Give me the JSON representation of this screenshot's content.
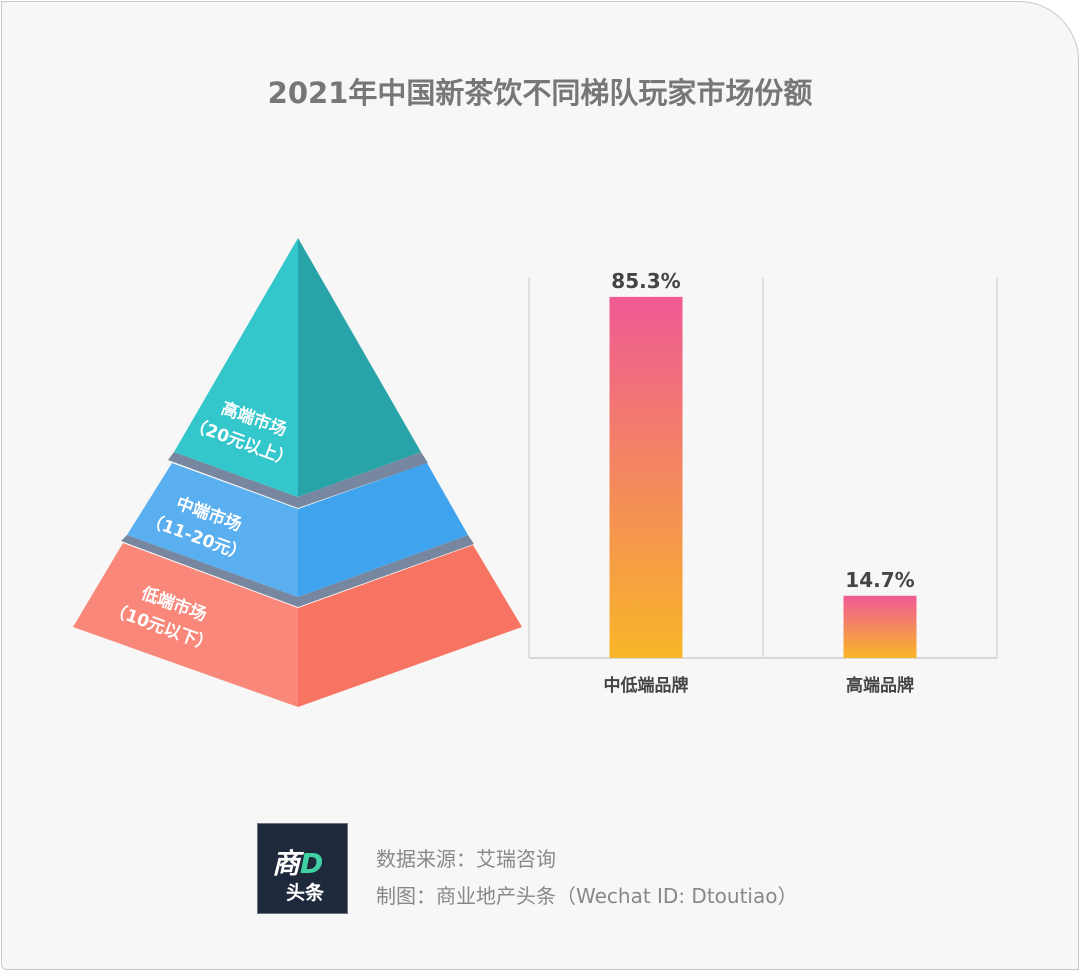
{
  "title": "2021年中国新茶饮不同梯队玩家市场份额",
  "pyramid": {
    "tiers": [
      {
        "label": "高端市场",
        "sub": "（20元以上）",
        "color_left": "#33c6cb",
        "color_right": "#28a4a8"
      },
      {
        "label": "中端市场",
        "sub": "（11-20元）",
        "color_left": "#5aaff0",
        "color_right": "#3fa3ee"
      },
      {
        "label": "低端市场",
        "sub": "（10元以下）",
        "color_left": "#fa887a",
        "color_right": "#f77462"
      }
    ],
    "separator_color": "#77879f"
  },
  "chart_data": {
    "type": "bar",
    "categories": [
      "中低端品牌",
      "高端品牌"
    ],
    "values": [
      85.3,
      14.7
    ],
    "data_labels": [
      "85.3%",
      "14.7%"
    ],
    "title": "",
    "xlabel": "",
    "ylabel": "",
    "ylim": [
      0,
      90
    ],
    "grid": "vertical separators",
    "bar_gradient": [
      "#ef5a94",
      "#f8b628"
    ]
  },
  "footer": {
    "logo_line1": "商",
    "logo_d": "D",
    "logo_line2": "头条",
    "source": "数据来源：艾瑞咨询",
    "credit": "制图：商业地产头条（Wechat ID: Dtoutiao）"
  }
}
